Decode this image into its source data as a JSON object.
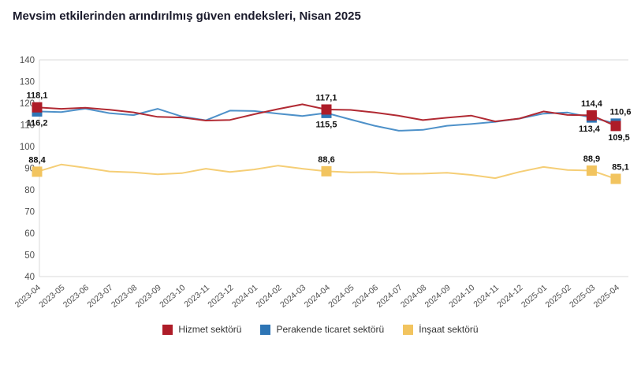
{
  "title": "Mevsim etkilerinden arındırılmış güven endeksleri, Nisan 2025",
  "chart_data": {
    "type": "line",
    "title": "Mevsim etkilerinden arındırılmış güven endeksleri, Nisan 2025",
    "xlabel": "",
    "ylabel": "",
    "ylim": [
      40,
      140
    ],
    "ytick_step": 10,
    "ytick_labels": [
      "40",
      "50",
      "60",
      "70",
      "80",
      "90",
      "100",
      "110",
      "120",
      "130",
      "140"
    ],
    "grid": "frame-only",
    "legend_position": "bottom",
    "categories": [
      "2023-04",
      "2023-05",
      "2023-06",
      "2023-07",
      "2023-08",
      "2023-09",
      "2023-10",
      "2023-11",
      "2023-12",
      "2024-01",
      "2024-02",
      "2024-03",
      "2024-04",
      "2024-05",
      "2024-06",
      "2024-07",
      "2024-08",
      "2024-09",
      "2024-10",
      "2024-11",
      "2024-12",
      "2025-01",
      "2025-02",
      "2025-03",
      "2025-04"
    ],
    "series": [
      {
        "name": "Hizmet sektörü",
        "slug": "hizmet-sektoru",
        "marker_color": "#AE1C28",
        "line_color": "#B12A33",
        "values": [
          118.1,
          117.4,
          117.9,
          117.0,
          115.8,
          113.7,
          113.4,
          112.0,
          112.3,
          114.9,
          117.3,
          119.5,
          117.1,
          116.9,
          115.7,
          114.2,
          112.2,
          113.3,
          114.3,
          111.6,
          112.9,
          116.2,
          114.6,
          114.4,
          109.5
        ]
      },
      {
        "name": "Perakende ticaret sektörü",
        "slug": "perakende-ticaret-sektoru",
        "marker_color": "#2E75B5",
        "line_color": "#4E91C9",
        "values": [
          116.2,
          115.9,
          117.5,
          115.4,
          114.5,
          117.4,
          113.9,
          112.1,
          116.6,
          116.4,
          115.2,
          114.1,
          115.5,
          112.5,
          109.6,
          107.3,
          107.7,
          109.6,
          110.4,
          111.4,
          112.9,
          115.2,
          115.7,
          113.4,
          110.6
        ]
      },
      {
        "name": "İnşaat sektörü",
        "slug": "insaat-sektoru",
        "marker_color": "#F2C45F",
        "line_color": "#F5CE76",
        "values": [
          88.4,
          91.7,
          90.2,
          88.5,
          88.1,
          87.2,
          87.7,
          89.8,
          88.3,
          89.4,
          91.2,
          89.8,
          88.6,
          88.1,
          88.2,
          87.4,
          87.5,
          87.9,
          86.9,
          85.4,
          88.3,
          90.6,
          89.2,
          88.9,
          85.1
        ]
      }
    ],
    "labeled_points": [
      {
        "series": 0,
        "index": 0,
        "label": "118,1",
        "position": "above",
        "dx": 0
      },
      {
        "series": 0,
        "index": 12,
        "label": "117,1",
        "position": "above",
        "dx": 0
      },
      {
        "series": 0,
        "index": 23,
        "label": "114,4",
        "position": "above",
        "dx": 0
      },
      {
        "series": 0,
        "index": 24,
        "label": "109,5",
        "position": "below",
        "dx": 4
      },
      {
        "series": 1,
        "index": 0,
        "label": "116,2",
        "position": "below",
        "dx": 0
      },
      {
        "series": 1,
        "index": 12,
        "label": "115,5",
        "position": "below",
        "dx": 0
      },
      {
        "series": 1,
        "index": 23,
        "label": "113,4",
        "position": "below",
        "dx": -3
      },
      {
        "series": 1,
        "index": 24,
        "label": "110,6",
        "position": "above",
        "dx": 6
      },
      {
        "series": 2,
        "index": 0,
        "label": "88,4",
        "position": "above",
        "dx": 0
      },
      {
        "series": 2,
        "index": 12,
        "label": "88,6",
        "position": "above",
        "dx": 0
      },
      {
        "series": 2,
        "index": 23,
        "label": "88,9",
        "position": "above",
        "dx": 0
      },
      {
        "series": 2,
        "index": 24,
        "label": "85,1",
        "position": "above",
        "dx": 6
      }
    ],
    "axis_color": "#d8d8d8",
    "tick_label_color": "#4f4f4f",
    "data_label_color": "#111111"
  }
}
